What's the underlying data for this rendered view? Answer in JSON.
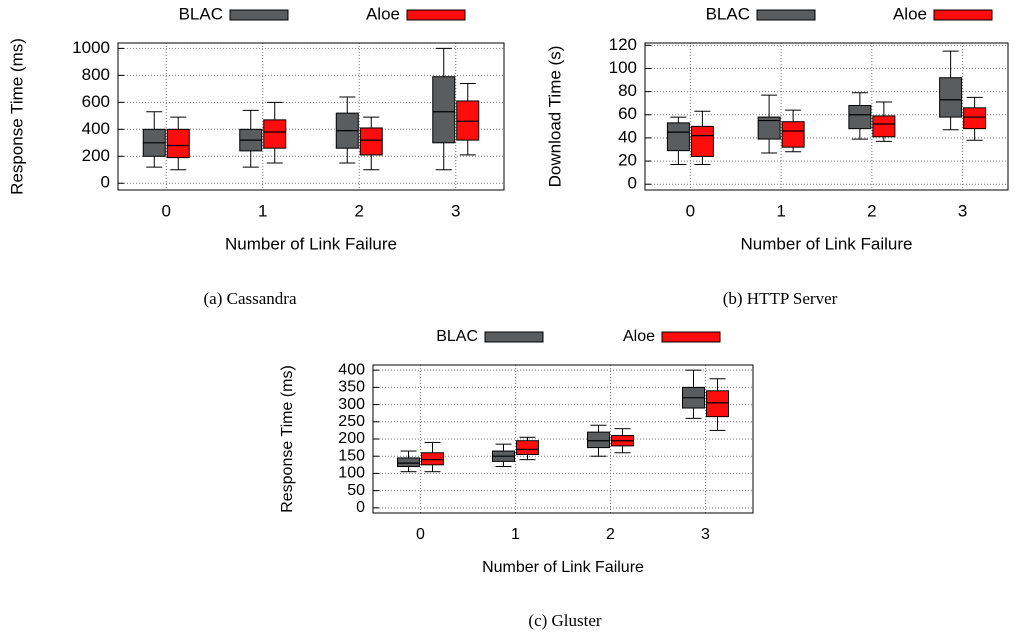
{
  "chart_data": [
    {
      "type": "box",
      "caption": "(a) Cassandra",
      "x_label": "Number of Link Failure",
      "y_label": "Response Time (ms)",
      "categories": [
        "0",
        "1",
        "2",
        "3"
      ],
      "ylim": [
        -50,
        1040
      ],
      "yticks": [
        0,
        200,
        400,
        600,
        800,
        1000
      ],
      "grid": true,
      "series": [
        {
          "name": "BLAC",
          "color": "#5a5c5e",
          "min": [
            120,
            120,
            150,
            100
          ],
          "q1": [
            200,
            240,
            260,
            300
          ],
          "median": [
            300,
            320,
            390,
            530
          ],
          "q3": [
            400,
            400,
            520,
            790
          ],
          "max": [
            530,
            540,
            640,
            1000
          ]
        },
        {
          "name": "Aloe",
          "color": "#ff0d0d",
          "min": [
            100,
            150,
            100,
            210
          ],
          "q1": [
            190,
            260,
            210,
            320
          ],
          "median": [
            280,
            380,
            320,
            460
          ],
          "q3": [
            400,
            470,
            410,
            610
          ],
          "max": [
            490,
            600,
            490,
            740
          ]
        }
      ]
    },
    {
      "type": "box",
      "caption": "(b) HTTP Server",
      "x_label": "Number of Link Failure",
      "y_label": "Download Time (s)",
      "categories": [
        "0",
        "1",
        "2",
        "3"
      ],
      "ylim": [
        -5,
        122
      ],
      "yticks": [
        0,
        20,
        40,
        60,
        80,
        100,
        120
      ],
      "grid": true,
      "series": [
        {
          "name": "BLAC",
          "color": "#5a5c5e",
          "min": [
            17,
            27,
            39,
            47
          ],
          "q1": [
            29,
            39,
            48,
            58
          ],
          "median": [
            45,
            55,
            60,
            73
          ],
          "q3": [
            53,
            58,
            68,
            92
          ],
          "max": [
            58,
            77,
            79,
            115
          ]
        },
        {
          "name": "Aloe",
          "color": "#ff0d0d",
          "min": [
            17,
            28,
            37,
            38
          ],
          "q1": [
            24,
            32,
            41,
            48
          ],
          "median": [
            42,
            46,
            52,
            58
          ],
          "q3": [
            50,
            54,
            59,
            66
          ],
          "max": [
            63,
            64,
            71,
            75
          ]
        }
      ]
    },
    {
      "type": "box",
      "caption": "(c) Gluster",
      "x_label": "Number of Link Failure",
      "y_label": "Response Time (ms)",
      "categories": [
        "0",
        "1",
        "2",
        "3"
      ],
      "ylim": [
        -15,
        415
      ],
      "yticks": [
        0,
        50,
        100,
        150,
        200,
        250,
        300,
        350,
        400
      ],
      "grid": true,
      "series": [
        {
          "name": "BLAC",
          "color": "#5a5c5e",
          "min": [
            105,
            120,
            150,
            260
          ],
          "q1": [
            120,
            135,
            175,
            290
          ],
          "median": [
            130,
            150,
            195,
            320
          ],
          "q3": [
            145,
            165,
            220,
            350
          ],
          "max": [
            165,
            185,
            240,
            400
          ]
        },
        {
          "name": "Aloe",
          "color": "#ff0d0d",
          "min": [
            105,
            140,
            160,
            225
          ],
          "q1": [
            125,
            155,
            180,
            265
          ],
          "median": [
            140,
            170,
            195,
            305
          ],
          "q3": [
            160,
            195,
            210,
            340
          ],
          "max": [
            190,
            205,
            230,
            375
          ]
        }
      ]
    }
  ]
}
